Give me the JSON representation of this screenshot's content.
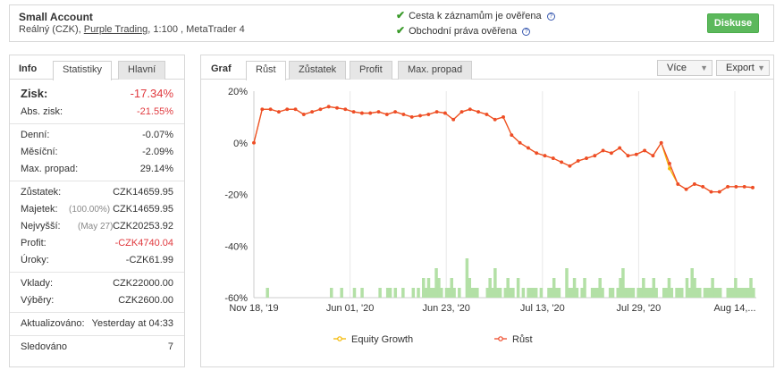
{
  "account": {
    "title": "Small Account",
    "type": "Reálný (CZK),",
    "broker": "Purple Trading",
    "details": ", 1:100 , MetaTrader 4"
  },
  "verify": [
    {
      "text": "Cesta k záznamům je ověřena",
      "icon": "help-icon"
    },
    {
      "text": "Obchodní práva ověřena",
      "icon": "help-icon"
    }
  ],
  "diskuse_label": "Diskuse",
  "left_tabs": {
    "info": "Info",
    "statistiky": "Statistiky",
    "hlavni": "Hlavní"
  },
  "stats": {
    "zisk": {
      "k": "Zisk:",
      "v": "-17.34%"
    },
    "abs_zisk": {
      "k": "Abs. zisk:",
      "v": "-21.55%"
    },
    "denni": {
      "k": "Denní:",
      "v": "-0.07%"
    },
    "mesicni": {
      "k": "Měsíční:",
      "v": "-2.09%"
    },
    "max_propad": {
      "k": "Max. propad:",
      "v": "29.14%"
    },
    "zustatek": {
      "k": "Zůstatek:",
      "v": "CZK14659.95"
    },
    "majetek": {
      "k": "Majetek:",
      "pct": "(100.00%)",
      "v": "CZK14659.95"
    },
    "nejvyssi": {
      "k": "Nejvyšší:",
      "pct": "(May 27)",
      "v": "CZK20253.92"
    },
    "profit": {
      "k": "Profit:",
      "v": "-CZK4740.04"
    },
    "uroky": {
      "k": "Úroky:",
      "v": "-CZK61.99"
    },
    "vklady": {
      "k": "Vklady:",
      "v": "CZK22000.00"
    },
    "vybery": {
      "k": "Výběry:",
      "v": "CZK2600.00"
    },
    "aktualizovano": {
      "k": "Aktualizováno:",
      "v": "Yesterday at 04:33"
    },
    "sledovano": {
      "k": "Sledováno",
      "v": "7"
    }
  },
  "right_tabs": {
    "graf": "Graf",
    "rust": "Růst",
    "zustatek": "Zůstatek",
    "profit": "Profit",
    "max_propad": "Max. propad"
  },
  "dropdowns": {
    "vice": "Více",
    "export": "Export"
  },
  "colors": {
    "accent_red": "#e0393e",
    "line_red": "#ee4b2b",
    "equity_yellow": "#f5b800",
    "bar_green": "#b3e0a6",
    "button_green": "#5cb85c"
  },
  "chart_data": {
    "type": "line",
    "x_labels": [
      "Nov 18, '19",
      "Jun 01, '20",
      "Jun 23, '20",
      "Jul 13, '20",
      "Jul 29, '20",
      "Aug 14,..."
    ],
    "y_ticks": [
      "20%",
      "0%",
      "-20%",
      "-40%",
      "-60%"
    ],
    "ylim": [
      -60,
      20
    ],
    "series": [
      {
        "name": "Růst",
        "values": [
          0,
          13,
          13,
          12,
          13,
          13,
          11,
          12,
          13,
          14,
          13.5,
          13,
          12,
          11.5,
          11.5,
          12,
          11,
          12,
          11,
          10,
          10.5,
          11,
          12,
          11.5,
          9,
          12,
          13,
          12,
          11,
          9,
          10,
          3,
          0,
          -2,
          -4,
          -5,
          -6,
          -7.5,
          -9,
          -7,
          -6,
          -5,
          -3,
          -4,
          -2,
          -5,
          -4.5,
          -3,
          -5,
          0,
          -8,
          -16,
          -18,
          -16,
          -17,
          -19,
          -19,
          -17,
          -17,
          -17,
          -17.34
        ]
      },
      {
        "name": "Equity Growth",
        "values": [
          0,
          13,
          13,
          12,
          13,
          13,
          11,
          12,
          13,
          14,
          13.5,
          13,
          12,
          11.5,
          11.5,
          12,
          11,
          12,
          11,
          10,
          10.5,
          11,
          12,
          11.5,
          9,
          12,
          13,
          12,
          11,
          9,
          10,
          3,
          0,
          -2,
          -4,
          -5,
          -6,
          -7.5,
          -9,
          -7,
          -6,
          -5,
          -3,
          -4,
          -2,
          -5,
          -4.5,
          -3,
          -5,
          0,
          -10,
          -16,
          -18,
          -16,
          -17,
          -19,
          -19,
          -17,
          -17,
          -17,
          -17.34
        ]
      }
    ],
    "bars": [
      0,
      0,
      0,
      0,
      1,
      0,
      0,
      0,
      0,
      0,
      0,
      0,
      0,
      0,
      0,
      0,
      0,
      0,
      0,
      0,
      0,
      0,
      0,
      0,
      0,
      0,
      0,
      0,
      0,
      1,
      0,
      0,
      0,
      1,
      0,
      0,
      0,
      0,
      1,
      0,
      0,
      1,
      0,
      0,
      0,
      0,
      0,
      0,
      1,
      0,
      0,
      1,
      1,
      0,
      1,
      0,
      0,
      1,
      0,
      0,
      0,
      1,
      0,
      1,
      0,
      2,
      1,
      2,
      1,
      1,
      3,
      2,
      1,
      0,
      1,
      1,
      2,
      1,
      0,
      1,
      0,
      0,
      4,
      2,
      1,
      1,
      1,
      0,
      0,
      0,
      1,
      2,
      1,
      3,
      1,
      1,
      0,
      1,
      2,
      1,
      1,
      0,
      2,
      0,
      1,
      0,
      1,
      1,
      1,
      1,
      0,
      1,
      0,
      0,
      1,
      1,
      2,
      1,
      1,
      0,
      0,
      3,
      1,
      1,
      2,
      1,
      0,
      1,
      2,
      0,
      0,
      1,
      1,
      1,
      2,
      1,
      0,
      0,
      1,
      1,
      0,
      1,
      2,
      3,
      1,
      1,
      1,
      1,
      0,
      1,
      1,
      2,
      1,
      1,
      1,
      2,
      1,
      0,
      0,
      1,
      1,
      2,
      1,
      0,
      1,
      1,
      1,
      0,
      2,
      1,
      3,
      2,
      1,
      1,
      0,
      1,
      1,
      1,
      2,
      1,
      1,
      1,
      0,
      0,
      1,
      1,
      1,
      2,
      1,
      1,
      1,
      1,
      1,
      2,
      1
    ],
    "legend": [
      "Equity Growth",
      "Růst"
    ],
    "legend_placement": "bottom",
    "grid": "vertical"
  }
}
